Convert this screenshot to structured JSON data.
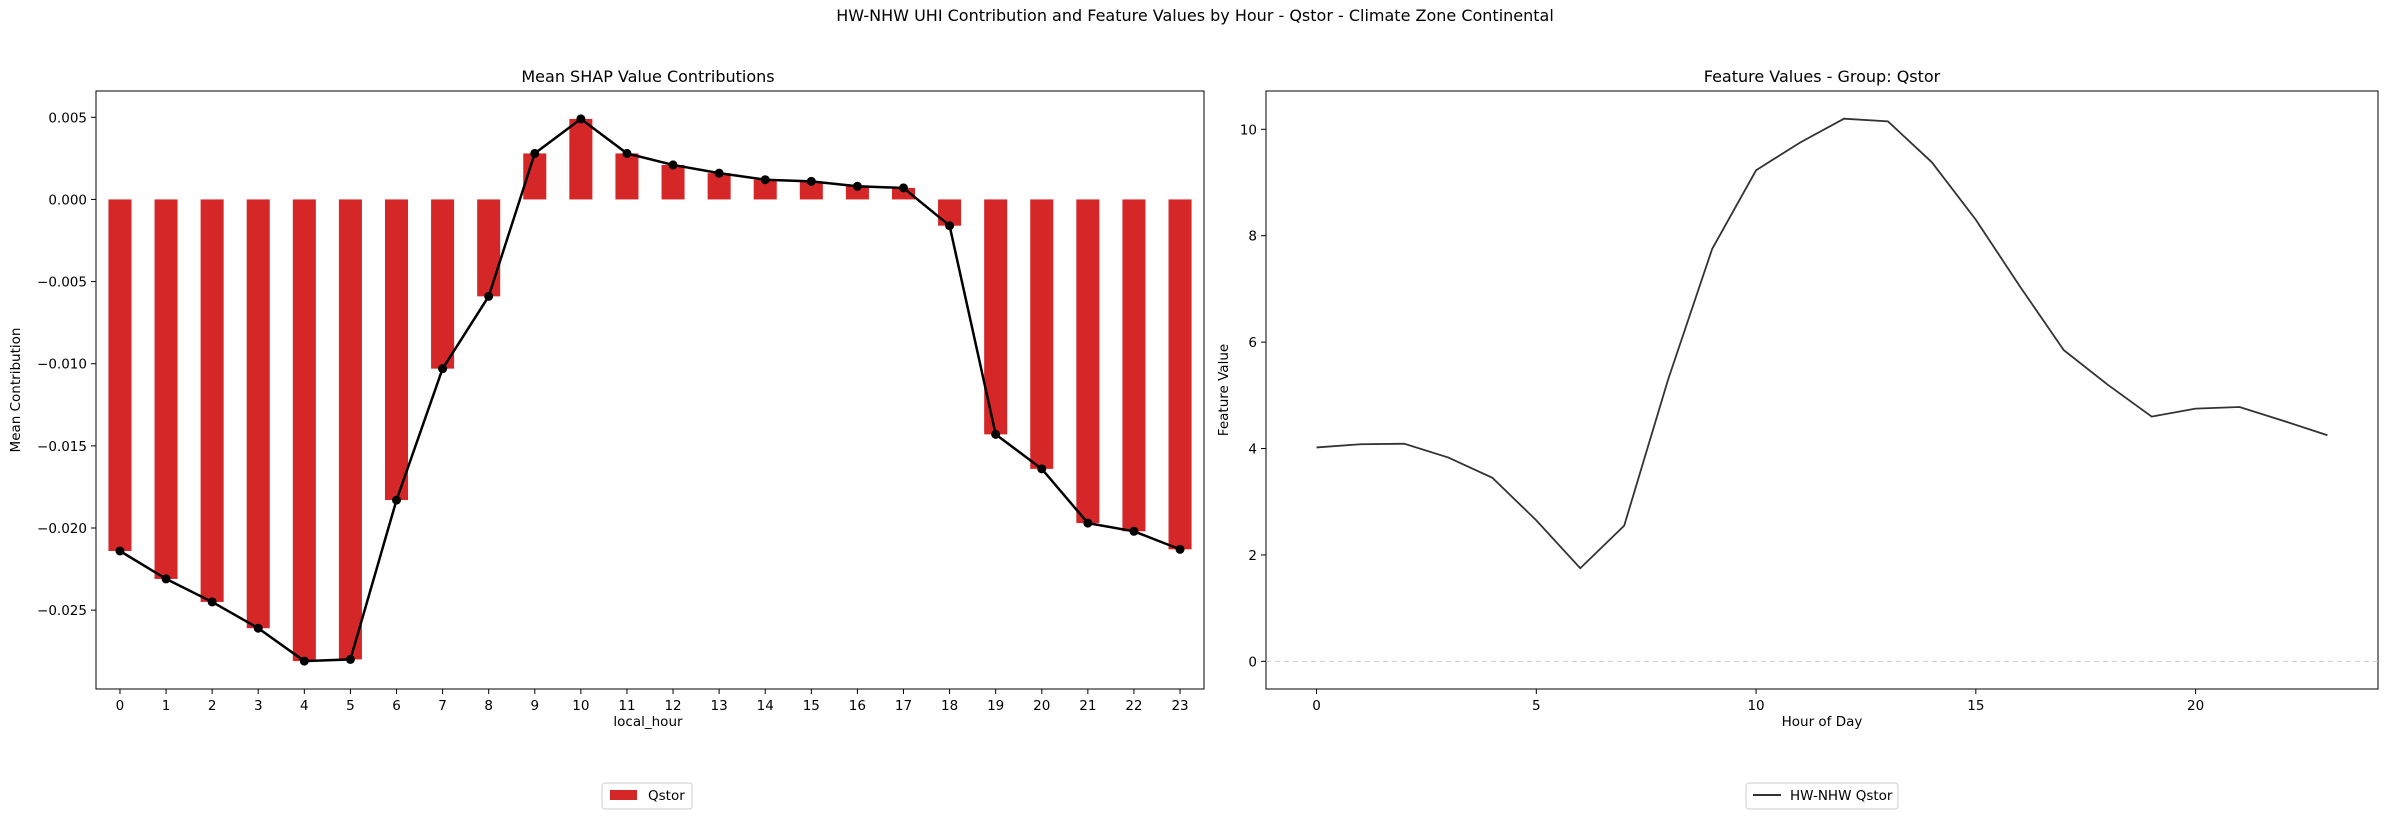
{
  "figure": {
    "suptitle": "HW-NHW UHI Contribution and Feature Values by Hour - Qstor - Climate Zone Continental"
  },
  "chart_data": [
    {
      "type": "bar",
      "title": "Mean SHAP Value Contributions",
      "xlabel": "local_hour",
      "ylabel": "Mean Contribution",
      "categories": [
        "0",
        "1",
        "2",
        "3",
        "4",
        "5",
        "6",
        "7",
        "8",
        "9",
        "10",
        "11",
        "12",
        "13",
        "14",
        "15",
        "16",
        "17",
        "18",
        "19",
        "20",
        "21",
        "22",
        "23"
      ],
      "series": [
        {
          "name": "Qstor",
          "color": "#d62728",
          "values": [
            -0.0214,
            -0.0231,
            -0.0245,
            -0.0261,
            -0.0281,
            -0.028,
            -0.0183,
            -0.0103,
            -0.0059,
            0.0028,
            0.0049,
            0.0028,
            0.0021,
            0.0016,
            0.0012,
            0.0011,
            0.0008,
            0.0007,
            -0.0016,
            -0.0143,
            -0.0164,
            -0.0197,
            -0.0202,
            -0.0213
          ]
        }
      ],
      "overlay_line": {
        "color": "#000000",
        "marker": "circle"
      },
      "ylim": [
        -0.0298,
        0.0066
      ],
      "yticks": [
        -0.025,
        -0.02,
        -0.015,
        -0.01,
        -0.005,
        0.0,
        0.005
      ],
      "ytick_labels": [
        "−0.025",
        "−0.020",
        "−0.015",
        "−0.010",
        "−0.005",
        "0.000",
        "0.005"
      ],
      "legend": {
        "position": "bottom-center",
        "entries": [
          "Qstor"
        ]
      },
      "grid": false
    },
    {
      "type": "line",
      "title": "Feature Values - Group: Qstor",
      "xlabel": "Hour of Day",
      "ylabel": "Feature Value",
      "x": [
        0,
        1,
        2,
        3,
        4,
        5,
        6,
        7,
        8,
        9,
        10,
        11,
        12,
        13,
        14,
        15,
        16,
        17,
        18,
        19,
        20,
        21,
        22,
        23
      ],
      "series": [
        {
          "name": "HW-NHW Qstor",
          "color": "#333333",
          "values": [
            4.02,
            4.08,
            4.09,
            3.83,
            3.45,
            2.65,
            1.75,
            2.55,
            5.3,
            7.75,
            9.23,
            9.75,
            10.2,
            10.15,
            9.38,
            8.3,
            7.05,
            5.85,
            5.2,
            4.6,
            4.75,
            4.78,
            4.52,
            4.25
          ]
        }
      ],
      "reference_line": {
        "y": 0,
        "style": "dashed",
        "color": "#cccccc"
      },
      "xlim": [
        -1.15,
        24.15
      ],
      "ylim": [
        -0.52,
        10.72
      ],
      "xticks": [
        0,
        5,
        10,
        15,
        20
      ],
      "yticks": [
        0,
        2,
        4,
        6,
        8,
        10
      ],
      "legend": {
        "position": "bottom-center",
        "entries": [
          "HW-NHW Qstor"
        ]
      },
      "grid": false
    }
  ]
}
